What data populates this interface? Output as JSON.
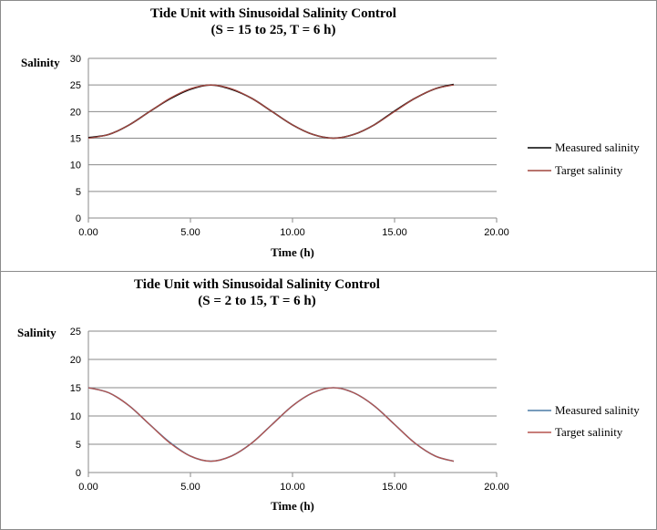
{
  "chart_data": [
    {
      "type": "line",
      "title": "Tide Unit with Sinusoidal Salinity Control",
      "subtitle": "(S = 15 to 25, T = 6 h)",
      "xlabel": "Time (h)",
      "ylabel": "Salinity",
      "xlim": [
        0,
        20
      ],
      "ylim": [
        0,
        30
      ],
      "x_ticks": [
        "0.00",
        "5.00",
        "10.00",
        "15.00",
        "20.00"
      ],
      "y_ticks": [
        "0",
        "5",
        "10",
        "15",
        "20",
        "25",
        "30"
      ],
      "grid": true,
      "legend": "right",
      "series": [
        {
          "name": "Measured salinity",
          "color": "#000000",
          "x": [
            0,
            1,
            2,
            3,
            4,
            5,
            6,
            7,
            8,
            9,
            10,
            11,
            12,
            13,
            14,
            15,
            16,
            17,
            17.9
          ],
          "y": [
            15.1,
            15.7,
            17.5,
            20.0,
            22.4,
            24.2,
            25.0,
            24.2,
            22.5,
            20.0,
            17.5,
            15.7,
            15.0,
            15.7,
            17.5,
            20.1,
            22.5,
            24.3,
            25.1
          ]
        },
        {
          "name": "Target salinity",
          "color": "#a0463f",
          "x": [
            0,
            1,
            2,
            3,
            4,
            5,
            6,
            7,
            8,
            9,
            10,
            11,
            12,
            13,
            14,
            15,
            16,
            17,
            17.9
          ],
          "y": [
            15.0,
            15.7,
            17.5,
            20.0,
            22.5,
            24.3,
            25.0,
            24.3,
            22.5,
            20.0,
            17.5,
            15.7,
            15.0,
            15.7,
            17.5,
            20.0,
            22.5,
            24.3,
            25.0
          ]
        }
      ]
    },
    {
      "type": "line",
      "title": "Tide Unit with Sinusoidal Salinity Control",
      "subtitle": "(S = 2 to 15, T = 6 h)",
      "xlabel": "Time (h)",
      "ylabel": "Salinity",
      "xlim": [
        0,
        20
      ],
      "ylim": [
        0,
        25
      ],
      "x_ticks": [
        "0.00",
        "5.00",
        "10.00",
        "15.00",
        "20.00"
      ],
      "y_ticks": [
        "0",
        "5",
        "10",
        "15",
        "20",
        "25"
      ],
      "grid": true,
      "legend": "right",
      "series": [
        {
          "name": "Measured salinity",
          "color": "#4a7aa6",
          "x": [
            0,
            1,
            2,
            3,
            4,
            5,
            6,
            7,
            8,
            9,
            10,
            11,
            12,
            13,
            14,
            15,
            16,
            17,
            17.9
          ],
          "y": [
            15.0,
            14.1,
            11.8,
            8.5,
            5.3,
            2.9,
            2.0,
            2.9,
            5.2,
            8.5,
            11.8,
            14.1,
            15.0,
            14.1,
            11.8,
            8.5,
            5.2,
            2.9,
            2.0
          ]
        },
        {
          "name": "Target salinity",
          "color": "#b5544e",
          "x": [
            0,
            1,
            2,
            3,
            4,
            5,
            6,
            7,
            8,
            9,
            10,
            11,
            12,
            13,
            14,
            15,
            16,
            17,
            17.9
          ],
          "y": [
            15.0,
            14.1,
            11.8,
            8.5,
            5.2,
            2.9,
            2.0,
            2.9,
            5.2,
            8.5,
            11.8,
            14.1,
            15.0,
            14.1,
            11.8,
            8.5,
            5.2,
            2.9,
            2.0
          ]
        }
      ]
    }
  ]
}
